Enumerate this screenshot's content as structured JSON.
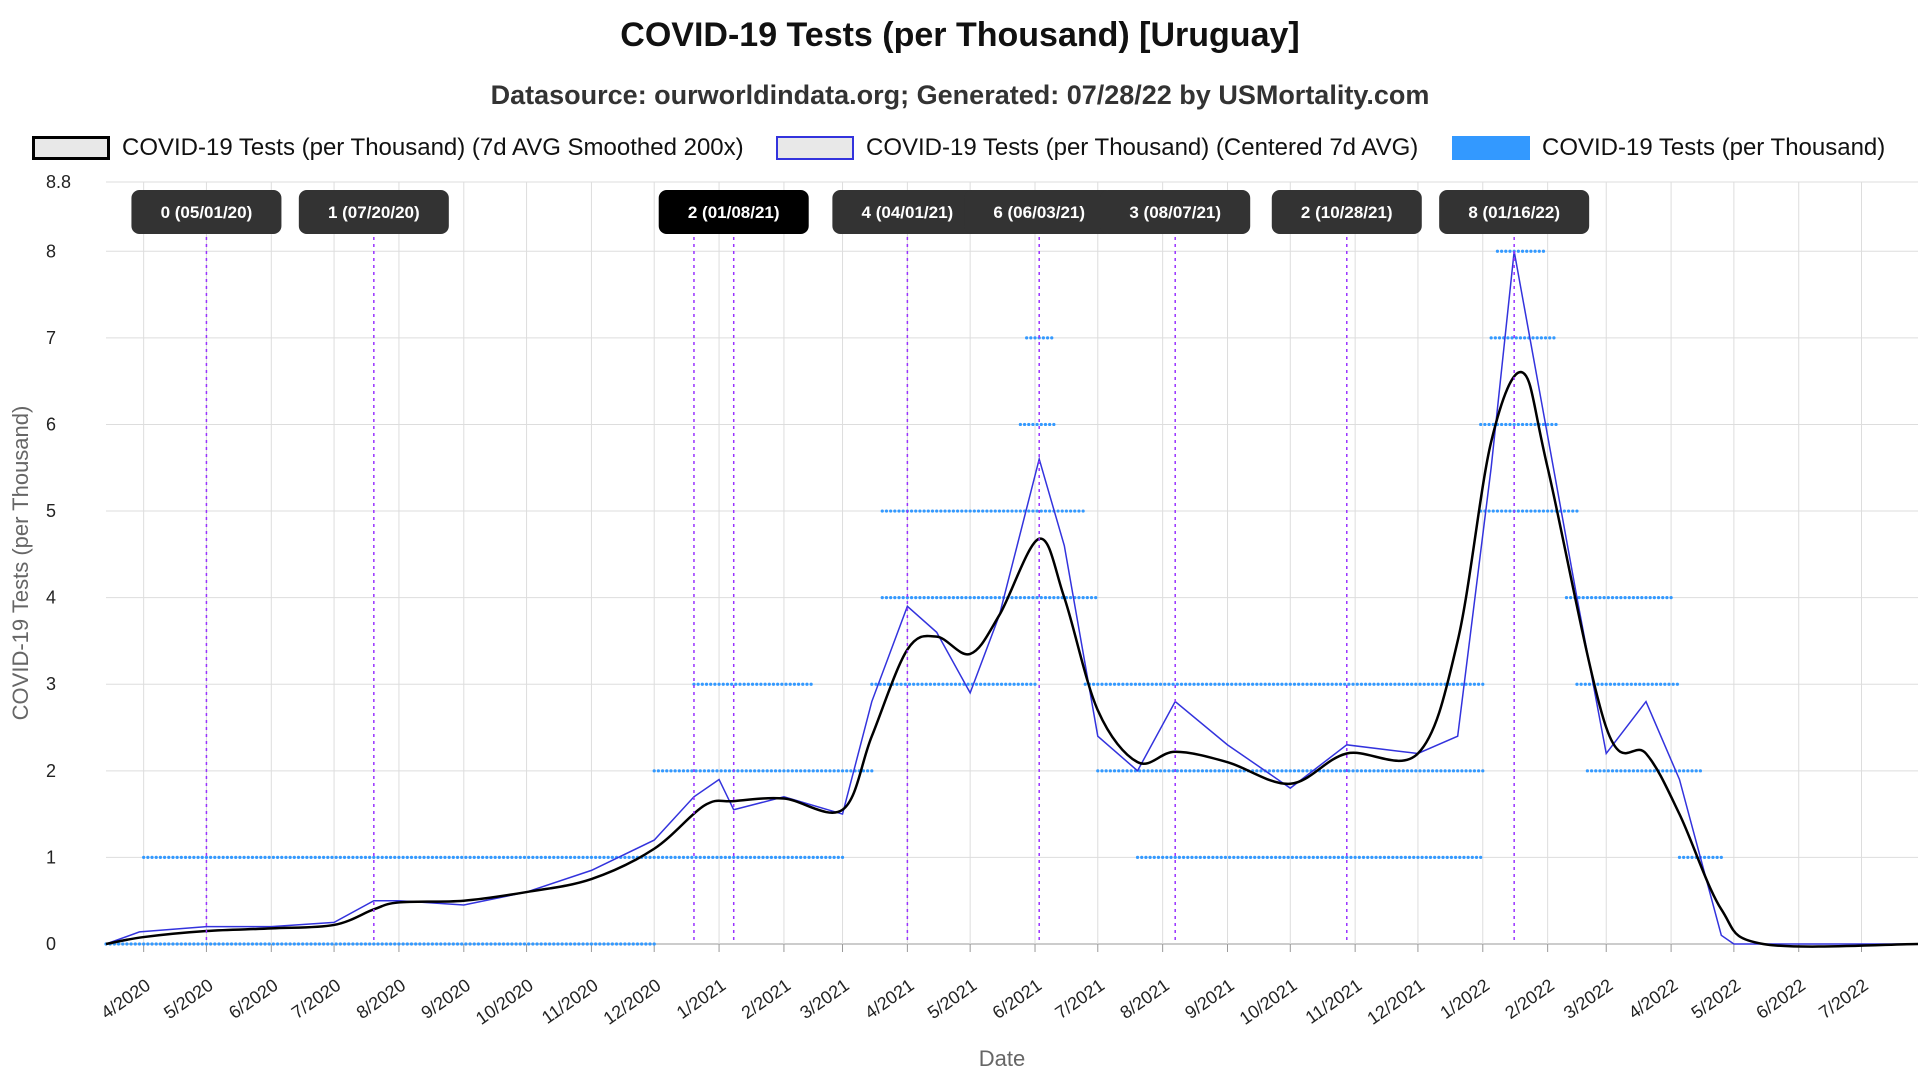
{
  "chart_data": {
    "type": "line",
    "title": "COVID-19 Tests (per Thousand) [Uruguay]",
    "subtitle": "Datasource: ourworldindata.org; Generated: 07/28/22 by USMortality.com",
    "xlabel": "Date",
    "ylabel": "COVID-19 Tests (per Thousand)",
    "ylim": [
      0,
      8.8
    ],
    "yticks": [
      0,
      1,
      2,
      3,
      4,
      5,
      6,
      7,
      8,
      8.8
    ],
    "xlim": [
      "2020-03-14",
      "2022-07-28"
    ],
    "xticks": [
      "4/2020",
      "5/2020",
      "6/2020",
      "7/2020",
      "8/2020",
      "9/2020",
      "10/2020",
      "11/2020",
      "12/2020",
      "1/2021",
      "2/2021",
      "3/2021",
      "4/2021",
      "5/2021",
      "6/2021",
      "7/2021",
      "8/2021",
      "9/2021",
      "10/2021",
      "11/2021",
      "12/2021",
      "1/2022",
      "2/2022",
      "3/2022",
      "4/2022",
      "5/2022",
      "6/2022",
      "7/2022"
    ],
    "grid": true,
    "legend_position": "top",
    "series": [
      {
        "name": "COVID-19 Tests (per Thousand) (7d AVG Smoothed 200x)",
        "color": "#000000",
        "style": "line",
        "points": [
          [
            "2020-03-14",
            0
          ],
          [
            "2020-04-01",
            0.08
          ],
          [
            "2020-05-01",
            0.15
          ],
          [
            "2020-06-01",
            0.18
          ],
          [
            "2020-07-01",
            0.22
          ],
          [
            "2020-07-20",
            0.4
          ],
          [
            "2020-08-01",
            0.48
          ],
          [
            "2020-09-01",
            0.5
          ],
          [
            "2020-10-01",
            0.6
          ],
          [
            "2020-11-01",
            0.75
          ],
          [
            "2020-12-01",
            1.1
          ],
          [
            "2020-12-25",
            1.6
          ],
          [
            "2021-01-08",
            1.65
          ],
          [
            "2021-02-01",
            1.68
          ],
          [
            "2021-03-01",
            1.55
          ],
          [
            "2021-03-15",
            2.4
          ],
          [
            "2021-04-01",
            3.4
          ],
          [
            "2021-04-15",
            3.55
          ],
          [
            "2021-05-01",
            3.35
          ],
          [
            "2021-05-15",
            3.8
          ],
          [
            "2021-06-03",
            4.68
          ],
          [
            "2021-06-15",
            4.0
          ],
          [
            "2021-07-01",
            2.7
          ],
          [
            "2021-07-20",
            2.1
          ],
          [
            "2021-08-07",
            2.22
          ],
          [
            "2021-09-01",
            2.1
          ],
          [
            "2021-10-01",
            1.85
          ],
          [
            "2021-10-28",
            2.2
          ],
          [
            "2021-12-01",
            2.2
          ],
          [
            "2021-12-20",
            3.5
          ],
          [
            "2022-01-05",
            5.8
          ],
          [
            "2022-01-20",
            6.6
          ],
          [
            "2022-02-01",
            5.5
          ],
          [
            "2022-03-01",
            2.5
          ],
          [
            "2022-03-20",
            2.2
          ],
          [
            "2022-04-05",
            1.5
          ],
          [
            "2022-04-25",
            0.4
          ],
          [
            "2022-05-15",
            0.0
          ],
          [
            "2022-07-28",
            0
          ]
        ]
      },
      {
        "name": "COVID-19 Tests (per Thousand) (Centered 7d AVG)",
        "color": "#3333dd",
        "style": "line",
        "points": [
          [
            "2020-03-14",
            0
          ],
          [
            "2020-03-30",
            0.14
          ],
          [
            "2020-05-01",
            0.2
          ],
          [
            "2020-06-01",
            0.2
          ],
          [
            "2020-07-01",
            0.25
          ],
          [
            "2020-07-20",
            0.5
          ],
          [
            "2020-08-01",
            0.5
          ],
          [
            "2020-09-01",
            0.45
          ],
          [
            "2020-10-01",
            0.6
          ],
          [
            "2020-11-01",
            0.85
          ],
          [
            "2020-12-01",
            1.2
          ],
          [
            "2020-12-20",
            1.7
          ],
          [
            "2021-01-01",
            1.9
          ],
          [
            "2021-01-08",
            1.55
          ],
          [
            "2021-02-01",
            1.7
          ],
          [
            "2021-03-01",
            1.5
          ],
          [
            "2021-03-15",
            2.8
          ],
          [
            "2021-04-01",
            3.9
          ],
          [
            "2021-04-15",
            3.6
          ],
          [
            "2021-05-01",
            2.9
          ],
          [
            "2021-05-15",
            3.8
          ],
          [
            "2021-06-03",
            5.6
          ],
          [
            "2021-06-15",
            4.6
          ],
          [
            "2021-07-01",
            2.4
          ],
          [
            "2021-07-20",
            2.0
          ],
          [
            "2021-08-07",
            2.8
          ],
          [
            "2021-09-01",
            2.3
          ],
          [
            "2021-10-01",
            1.8
          ],
          [
            "2021-10-28",
            2.3
          ],
          [
            "2021-12-01",
            2.2
          ],
          [
            "2021-12-20",
            2.4
          ],
          [
            "2022-01-05",
            5.5
          ],
          [
            "2022-01-16",
            8.0
          ],
          [
            "2022-01-25",
            6.8
          ],
          [
            "2022-02-15",
            4.0
          ],
          [
            "2022-03-01",
            2.2
          ],
          [
            "2022-03-20",
            2.8
          ],
          [
            "2022-04-05",
            1.9
          ],
          [
            "2022-04-15",
            1.0
          ],
          [
            "2022-04-25",
            0.1
          ],
          [
            "2022-05-01",
            0.0
          ],
          [
            "2022-07-28",
            0
          ]
        ]
      },
      {
        "name": "COVID-19 Tests (per Thousand)",
        "color": "#3399ff",
        "style": "points",
        "bands": [
          {
            "value": 0,
            "from": "2020-03-14",
            "to": "2020-12-01"
          },
          {
            "value": 1,
            "from": "2020-04-01",
            "to": "2021-03-01"
          },
          {
            "value": 2,
            "from": "2020-12-01",
            "to": "2021-03-15"
          },
          {
            "value": 3,
            "from": "2020-12-20",
            "to": "2021-02-15"
          },
          {
            "value": 3,
            "from": "2021-03-15",
            "to": "2021-06-01"
          },
          {
            "value": 4,
            "from": "2021-03-20",
            "to": "2021-06-30"
          },
          {
            "value": 5,
            "from": "2021-03-20",
            "to": "2021-06-25"
          },
          {
            "value": 3,
            "from": "2021-06-25",
            "to": "2022-01-01"
          },
          {
            "value": 2,
            "from": "2021-07-01",
            "to": "2022-01-01"
          },
          {
            "value": 1,
            "from": "2021-07-20",
            "to": "2021-12-31"
          },
          {
            "value": 6,
            "from": "2021-05-25",
            "to": "2021-06-10"
          },
          {
            "value": 7,
            "from": "2021-05-28",
            "to": "2021-06-10"
          },
          {
            "value": 6,
            "from": "2021-12-31",
            "to": "2022-02-05"
          },
          {
            "value": 7,
            "from": "2022-01-05",
            "to": "2022-02-05"
          },
          {
            "value": 8,
            "from": "2022-01-08",
            "to": "2022-01-30"
          },
          {
            "value": 5,
            "from": "2021-12-31",
            "to": "2022-02-15"
          },
          {
            "value": 4,
            "from": "2022-02-10",
            "to": "2022-04-01"
          },
          {
            "value": 3,
            "from": "2022-02-15",
            "to": "2022-04-05"
          },
          {
            "value": 2,
            "from": "2022-02-20",
            "to": "2022-04-15"
          },
          {
            "value": 1,
            "from": "2022-04-05",
            "to": "2022-04-25"
          }
        ]
      }
    ],
    "annotations": [
      {
        "date": "2020-05-01",
        "label": "0 (05/01/20)"
      },
      {
        "date": "2020-07-20",
        "label": "1 (07/20/20)"
      },
      {
        "date": "2020-12-20",
        "label": "2 ("
      },
      {
        "date": "2021-01-08",
        "label": "2 (01/08/21)"
      },
      {
        "date": "2021-04-01",
        "label": "4 (04/01/21)"
      },
      {
        "date": "2021-06-03",
        "label": "6 (06/03/21)"
      },
      {
        "date": "2021-08-07",
        "label": "3 (08/07/21)"
      },
      {
        "date": "2021-10-28",
        "label": "2 (10/28/21)"
      },
      {
        "date": "2022-01-16",
        "label": "8 (01/16/22)"
      }
    ]
  },
  "legend": {
    "items": [
      {
        "label": "COVID-19 Tests (per Thousand) (7d AVG Smoothed 200x)",
        "fill": "#e8e8e8",
        "border": "#000000"
      },
      {
        "label": "COVID-19 Tests (per Thousand) (Centered 7d AVG)",
        "fill": "#e8e8e8",
        "border": "#3333dd"
      },
      {
        "label": "COVID-19 Tests (per Thousand)",
        "fill": "#3399ff",
        "border": "#3399ff"
      }
    ]
  },
  "colors": {
    "grid": "#dddddd",
    "annotation_line": "#9933ff",
    "annotation_box": "#333333",
    "annotation_text": "#ffffff",
    "axis_title": "#666666"
  }
}
